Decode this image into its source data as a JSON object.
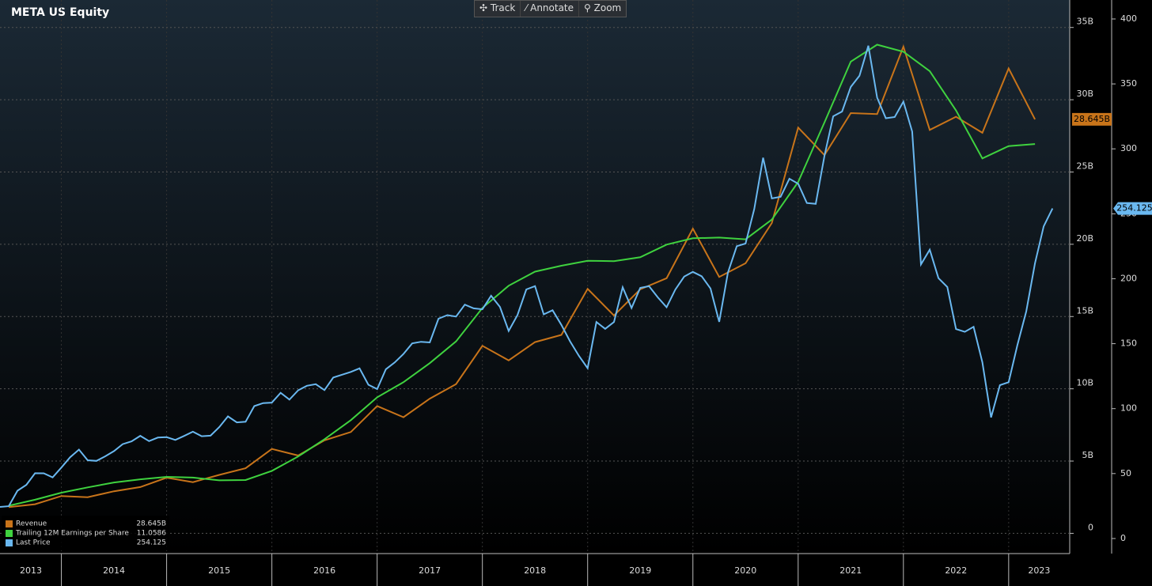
{
  "chart_data": {
    "type": "line",
    "title": "META US Equity",
    "toolbar": [
      "Track",
      "Annotate",
      "Zoom"
    ],
    "xlim": [
      2013.417,
      2023.58
    ],
    "year_separators": [
      2014,
      2015,
      2016,
      2017,
      2018,
      2019,
      2020,
      2021,
      2022,
      2023
    ],
    "xticks": [
      {
        "value": 2013.71,
        "label": "2013"
      },
      {
        "value": 2014.5,
        "label": "2014"
      },
      {
        "value": 2015.5,
        "label": "2015"
      },
      {
        "value": 2016.5,
        "label": "2016"
      },
      {
        "value": 2017.5,
        "label": "2017"
      },
      {
        "value": 2018.5,
        "label": "2018"
      },
      {
        "value": 2019.5,
        "label": "2019"
      },
      {
        "value": 2020.5,
        "label": "2020"
      },
      {
        "value": 2021.5,
        "label": "2021"
      },
      {
        "value": 2022.5,
        "label": "2022"
      },
      {
        "value": 2023.29,
        "label": "2023"
      }
    ],
    "ylim": [
      -1.4,
      36.9
    ],
    "yticks": [
      {
        "value": 0,
        "label": "0"
      },
      {
        "value": 5,
        "label": "5B"
      },
      {
        "value": 10,
        "label": "10B"
      },
      {
        "value": 15,
        "label": "15B"
      },
      {
        "value": 20,
        "label": "20B"
      },
      {
        "value": 25,
        "label": "25B"
      },
      {
        "value": 30,
        "label": "30B"
      },
      {
        "value": 35,
        "label": "35B"
      }
    ],
    "y2lim": [
      -11.6,
      414.6
    ],
    "y2ticks": [
      0,
      50,
      100,
      150,
      200,
      250,
      300,
      350,
      400
    ],
    "y3lim": [
      -0.58,
      15.15
    ],
    "grid": true,
    "legend": "bottom-left",
    "series": [
      {
        "name": "Revenue",
        "color": "#c8741a",
        "axis": "y",
        "last_value_label": "28.645B",
        "x": [
          2013.5,
          2013.75,
          2014.0,
          2014.25,
          2014.5,
          2014.75,
          2015.0,
          2015.25,
          2015.5,
          2015.75,
          2016.0,
          2016.25,
          2016.5,
          2016.75,
          2017.0,
          2017.25,
          2017.5,
          2017.75,
          2018.0,
          2018.25,
          2018.5,
          2018.75,
          2019.0,
          2019.25,
          2019.5,
          2019.75,
          2020.0,
          2020.25,
          2020.5,
          2020.75,
          2021.0,
          2021.25,
          2021.5,
          2021.75,
          2022.0,
          2022.25,
          2022.5,
          2022.75,
          2023.0,
          2023.25
        ],
        "values": [
          1.813,
          2.016,
          2.585,
          2.502,
          2.91,
          3.203,
          3.851,
          3.543,
          4.042,
          4.501,
          5.841,
          5.382,
          6.436,
          7.011,
          8.809,
          8.032,
          9.321,
          10.328,
          12.972,
          11.966,
          13.231,
          13.727,
          16.914,
          15.077,
          16.886,
          17.652,
          21.082,
          17.737,
          18.687,
          21.47,
          28.072,
          26.171,
          29.077,
          29.01,
          33.671,
          27.908,
          28.822,
          27.714,
          32.165,
          28.645
        ]
      },
      {
        "name": "Trailing 12M Earnings per Share",
        "color": "#3fd23f",
        "axis": "y3",
        "x": [
          2013.5,
          2013.75,
          2014.0,
          2014.25,
          2014.5,
          2014.75,
          2015.0,
          2015.25,
          2015.5,
          2015.75,
          2016.0,
          2016.25,
          2016.5,
          2016.75,
          2017.0,
          2017.25,
          2017.5,
          2017.75,
          2018.0,
          2018.25,
          2018.5,
          2018.75,
          2019.0,
          2019.25,
          2019.5,
          2019.75,
          2020.0,
          2020.25,
          2020.5,
          2020.75,
          2021.0,
          2021.25,
          2021.5,
          2021.75,
          2022.0,
          2022.25,
          2022.5,
          2022.75,
          2023.0,
          2023.25
        ],
        "values": [
          0.78,
          0.95,
          1.15,
          1.3,
          1.44,
          1.53,
          1.6,
          1.58,
          1.5,
          1.51,
          1.77,
          2.18,
          2.67,
          3.21,
          3.86,
          4.29,
          4.83,
          5.45,
          6.4,
          7.03,
          7.43,
          7.6,
          7.74,
          7.73,
          7.84,
          8.2,
          8.38,
          8.4,
          8.35,
          8.91,
          9.98,
          11.67,
          13.4,
          13.88,
          13.68,
          13.13,
          12.01,
          10.65,
          11.0,
          11.0586
        ]
      },
      {
        "name": "Last Price",
        "color": "#6ab8f0",
        "axis": "y2",
        "x": [
          2013.417,
          2013.5,
          2013.583,
          2013.667,
          2013.75,
          2013.833,
          2013.917,
          2014.0,
          2014.083,
          2014.167,
          2014.25,
          2014.333,
          2014.417,
          2014.5,
          2014.583,
          2014.667,
          2014.75,
          2014.833,
          2014.917,
          2015.0,
          2015.083,
          2015.167,
          2015.25,
          2015.333,
          2015.417,
          2015.5,
          2015.583,
          2015.667,
          2015.75,
          2015.833,
          2015.917,
          2016.0,
          2016.083,
          2016.167,
          2016.25,
          2016.333,
          2016.417,
          2016.5,
          2016.583,
          2016.667,
          2016.75,
          2016.833,
          2016.917,
          2017.0,
          2017.083,
          2017.167,
          2017.25,
          2017.333,
          2017.417,
          2017.5,
          2017.583,
          2017.667,
          2017.75,
          2017.833,
          2017.917,
          2018.0,
          2018.083,
          2018.167,
          2018.25,
          2018.333,
          2018.417,
          2018.5,
          2018.583,
          2018.667,
          2018.75,
          2018.833,
          2018.917,
          2019.0,
          2019.083,
          2019.167,
          2019.25,
          2019.333,
          2019.417,
          2019.5,
          2019.583,
          2019.667,
          2019.75,
          2019.833,
          2019.917,
          2020.0,
          2020.083,
          2020.167,
          2020.25,
          2020.333,
          2020.417,
          2020.5,
          2020.583,
          2020.667,
          2020.75,
          2020.833,
          2020.917,
          2021.0,
          2021.083,
          2021.167,
          2021.25,
          2021.333,
          2021.417,
          2021.5,
          2021.583,
          2021.667,
          2021.75,
          2021.833,
          2021.917,
          2022.0,
          2022.083,
          2022.167,
          2022.25,
          2022.333,
          2022.417,
          2022.5,
          2022.583,
          2022.667,
          2022.75,
          2022.833,
          2022.917,
          2023.0,
          2023.083,
          2023.167,
          2023.25,
          2023.333,
          2023.417
        ],
        "values": [
          24.35,
          24.88,
          36.8,
          41.29,
          50.23,
          50.21,
          47.01,
          54.65,
          62.57,
          68.46,
          60.24,
          59.78,
          63.3,
          67.29,
          72.65,
          74.82,
          79.04,
          74.99,
          77.7,
          78.02,
          75.91,
          78.97,
          82.22,
          78.77,
          79.19,
          85.77,
          94.01,
          89.43,
          89.9,
          101.97,
          104.24,
          104.66,
          112.21,
          106.92,
          114.1,
          117.58,
          118.81,
          114.28,
          123.94,
          126.12,
          128.27,
          130.99,
          118.42,
          115.05,
          130.32,
          135.54,
          142.05,
          150.25,
          151.46,
          150.98,
          169.25,
          171.97,
          170.87,
          180.06,
          177.18,
          176.46,
          186.89,
          178.32,
          159.79,
          172.0,
          191.78,
          194.32,
          172.58,
          175.73,
          164.46,
          151.79,
          140.61,
          131.09,
          166.69,
          161.45,
          166.69,
          193.4,
          177.47,
          193.0,
          194.23,
          185.67,
          178.08,
          191.65,
          201.64,
          205.25,
          201.91,
          192.47,
          166.8,
          204.71,
          225.09,
          227.07,
          253.67,
          293.2,
          261.9,
          263.11,
          276.97,
          273.16,
          258.33,
          257.62,
          294.53,
          325.08,
          328.73,
          347.71,
          356.3,
          379.38,
          339.39,
          323.57,
          324.46,
          336.35,
          313.26,
          211.03,
          222.36,
          200.47,
          193.64,
          161.25,
          159.1,
          162.93,
          135.68,
          93.16,
          118.1,
          120.34,
          148.97,
          174.94,
          211.94,
          240.32,
          254.125
        ]
      }
    ]
  }
}
